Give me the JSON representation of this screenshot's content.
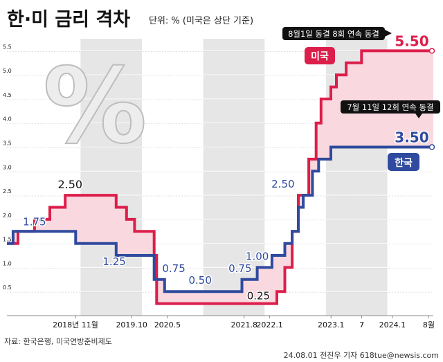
{
  "header": {
    "title": "한·미 금리 격차",
    "subtitle": "단위: % (미국은 상단 기준)"
  },
  "colors": {
    "us": "#dc1e4b",
    "kr": "#2f4a9e",
    "gap_fill": "#f9d9df",
    "band": "#e6e6e6",
    "tag_bg": "#111111"
  },
  "chart_data": {
    "type": "line",
    "x_axis": {
      "ticks": [
        {
          "x": 2018.917,
          "label": "2018년 11월"
        },
        {
          "x": 2019.833,
          "label": "2019.10"
        },
        {
          "x": 2020.417,
          "label": "2020.5"
        },
        {
          "x": 2021.667,
          "label": "2021.8"
        },
        {
          "x": 2022.083,
          "label": "2022.1"
        },
        {
          "x": 2023.083,
          "label": "2023.1"
        },
        {
          "x": 2023.583,
          "label": "7"
        },
        {
          "x": 2024.083,
          "label": "2024.1"
        },
        {
          "x": 2024.667,
          "label": "8월"
        }
      ]
    },
    "yticks": [
      "0.5",
      "1.0",
      "1.5",
      "2.0",
      "2.5",
      "3.0",
      "3.5",
      "4.0",
      "4.5",
      "5.0",
      "5.5"
    ],
    "ylim": [
      0,
      5.75
    ],
    "grid": true,
    "series": [
      {
        "name": "미국",
        "points": [
          [
            2017.8,
            1.5
          ],
          [
            2017.98,
            1.75
          ],
          [
            2018.25,
            2.0
          ],
          [
            2018.5,
            2.25
          ],
          [
            2018.75,
            2.5
          ],
          [
            2019.58,
            2.25
          ],
          [
            2019.75,
            2.0
          ],
          [
            2019.88,
            1.75
          ],
          [
            2020.2,
            1.25
          ],
          [
            2020.24,
            0.25
          ],
          [
            2022.2,
            0.5
          ],
          [
            2022.33,
            1.0
          ],
          [
            2022.45,
            1.75
          ],
          [
            2022.55,
            2.5
          ],
          [
            2022.72,
            3.25
          ],
          [
            2022.84,
            4.0
          ],
          [
            2022.92,
            4.5
          ],
          [
            2023.08,
            4.75
          ],
          [
            2023.17,
            5.0
          ],
          [
            2023.33,
            5.25
          ],
          [
            2023.58,
            5.5
          ],
          [
            2024.75,
            5.5
          ]
        ]
      },
      {
        "name": "한국",
        "points": [
          [
            2017.8,
            1.5
          ],
          [
            2017.9,
            1.75
          ],
          [
            2018.92,
            1.5
          ],
          [
            2019.58,
            1.25
          ],
          [
            2019.83,
            1.25
          ],
          [
            2020.2,
            0.75
          ],
          [
            2020.37,
            0.5
          ],
          [
            2021.63,
            0.75
          ],
          [
            2021.88,
            1.0
          ],
          [
            2022.12,
            1.25
          ],
          [
            2022.33,
            1.5
          ],
          [
            2022.45,
            1.75
          ],
          [
            2022.55,
            2.25
          ],
          [
            2022.63,
            2.5
          ],
          [
            2022.78,
            3.0
          ],
          [
            2022.88,
            3.25
          ],
          [
            2023.08,
            3.5
          ],
          [
            2024.75,
            3.5
          ]
        ]
      }
    ],
    "annotations": [
      {
        "text": "2.50",
        "x": 2018.83,
        "y": 2.5,
        "series": "미국"
      },
      {
        "text": "1.75",
        "x": 2018.25,
        "y": 1.75,
        "series": "한국"
      },
      {
        "text": "1.25",
        "x": 2019.55,
        "y": 1.25,
        "series": "한국"
      },
      {
        "text": "0.75",
        "x": 2020.52,
        "y": 0.75,
        "series": "한국"
      },
      {
        "text": "0.50",
        "x": 2020.95,
        "y": 0.5,
        "series": "한국"
      },
      {
        "text": "0.75",
        "x": 2021.6,
        "y": 0.75,
        "series": "한국"
      },
      {
        "text": "1.00",
        "x": 2021.88,
        "y": 1.0,
        "series": "한국"
      },
      {
        "text": "0.25",
        "x": 2021.9,
        "y": 0.25,
        "series": "미국"
      },
      {
        "text": "2.50",
        "x": 2022.3,
        "y": 2.5,
        "series": "한국"
      },
      {
        "text": "5.50",
        "x": 2024.4,
        "y": 5.5,
        "series": "미국"
      },
      {
        "text": "3.50",
        "x": 2024.4,
        "y": 3.5,
        "series": "한국"
      }
    ],
    "callouts": {
      "us": "8월1일 동결 8회 연속 동결",
      "kr": "7월 11일 12회 연속 동결"
    },
    "legend": {
      "us": "미국",
      "kr": "한국"
    },
    "decoration": {
      "percent_glyph": "%"
    }
  },
  "footer": {
    "source": "자료: 한국은행, 미국연방준비제도",
    "credit": "24.08.01 전진우 기자 618tue@newsis.com"
  }
}
